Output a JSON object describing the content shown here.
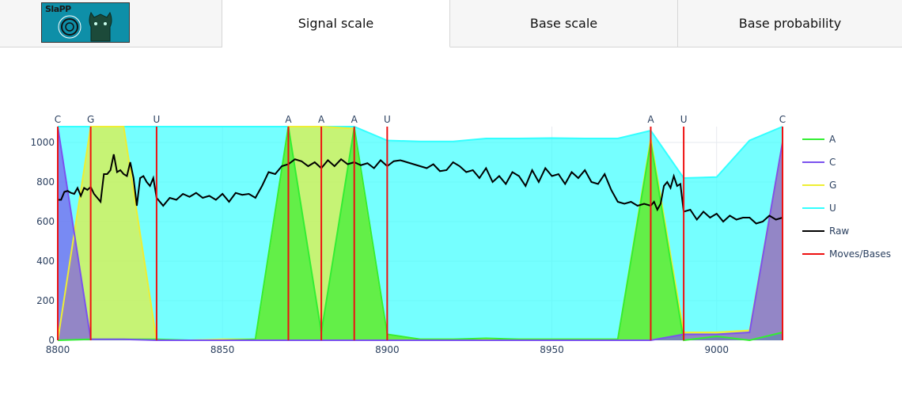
{
  "logo": {
    "text": "SlaPP",
    "icon": "slappy-logo-icon"
  },
  "tabs": [
    {
      "label": "Signal scale",
      "active": true
    },
    {
      "label": "Base scale",
      "active": false
    },
    {
      "label": "Base probability",
      "active": false
    }
  ],
  "chart_data": {
    "type": "area",
    "xlim": [
      8800,
      9020
    ],
    "ylim": [
      0,
      1080
    ],
    "xticks": [
      8800,
      8850,
      8900,
      8950,
      9000
    ],
    "yticks": [
      0,
      200,
      400,
      600,
      800,
      1000
    ],
    "grid": true,
    "legend_position": "right",
    "moves": [
      {
        "x": 8800,
        "base": "C"
      },
      {
        "x": 8810,
        "base": "G"
      },
      {
        "x": 8830,
        "base": "U"
      },
      {
        "x": 8870,
        "base": "A"
      },
      {
        "x": 8880,
        "base": "A"
      },
      {
        "x": 8890,
        "base": "A"
      },
      {
        "x": 8900,
        "base": "U"
      },
      {
        "x": 8980,
        "base": "A"
      },
      {
        "x": 8990,
        "base": "U"
      },
      {
        "x": 9020,
        "base": "C"
      }
    ],
    "series": [
      {
        "name": "A",
        "color": "#33ee33",
        "x": [
          8800,
          8810,
          8820,
          8830,
          8840,
          8850,
          8860,
          8870,
          8880,
          8890,
          8900,
          8910,
          8920,
          8930,
          8940,
          8950,
          8960,
          8970,
          8980,
          8990,
          9000,
          9010,
          9020
        ],
        "values": [
          0,
          5,
          5,
          5,
          0,
          0,
          5,
          1080,
          40,
          1075,
          30,
          5,
          5,
          10,
          5,
          5,
          5,
          5,
          1000,
          0,
          20,
          0,
          40
        ]
      },
      {
        "name": "C",
        "color": "#7b52ee",
        "x": [
          8800,
          8810,
          8820,
          8830,
          8840,
          8850,
          8860,
          8870,
          8880,
          8890,
          8900,
          8910,
          8920,
          8930,
          8940,
          8950,
          8960,
          8970,
          8980,
          8990,
          9000,
          9010,
          9020
        ],
        "values": [
          1080,
          5,
          5,
          0,
          0,
          0,
          0,
          0,
          0,
          0,
          0,
          0,
          0,
          0,
          0,
          0,
          0,
          0,
          0,
          30,
          30,
          40,
          1000
        ]
      },
      {
        "name": "G",
        "color": "#eeee33",
        "x": [
          8800,
          8810,
          8820,
          8830,
          8840,
          8850,
          8860,
          8870,
          8880,
          8890,
          8900,
          8910,
          8920,
          8930,
          8940,
          8950,
          8960,
          8970,
          8980,
          8990,
          9000,
          9010,
          9020
        ],
        "values": [
          0,
          1080,
          1080,
          0,
          0,
          5,
          5,
          1080,
          1080,
          1070,
          30,
          5,
          5,
          5,
          5,
          5,
          5,
          5,
          1020,
          40,
          40,
          50,
          1000
        ]
      },
      {
        "name": "U",
        "color": "#33ffff",
        "x": [
          8800,
          8810,
          8820,
          8830,
          8840,
          8850,
          8860,
          8870,
          8880,
          8890,
          8900,
          8910,
          8920,
          8930,
          8940,
          8950,
          8960,
          8970,
          8980,
          8990,
          9000,
          9010,
          9020
        ],
        "values": [
          1080,
          1080,
          1080,
          1080,
          1080,
          1080,
          1080,
          1080,
          1080,
          1080,
          1010,
          1005,
          1005,
          1020,
          1020,
          1022,
          1020,
          1020,
          1060,
          820,
          825,
          1010,
          1080
        ]
      },
      {
        "name": "Raw",
        "color": "#000000",
        "x": [
          8800,
          8801,
          8802,
          8803,
          8804,
          8805,
          8806,
          8807,
          8808,
          8809,
          8810,
          8811,
          8812,
          8813,
          8814,
          8815,
          8816,
          8817,
          8818,
          8819,
          8820,
          8821,
          8822,
          8823,
          8824,
          8825,
          8826,
          8827,
          8828,
          8829,
          8830,
          8832,
          8834,
          8836,
          8838,
          8840,
          8842,
          8844,
          8846,
          8848,
          8850,
          8852,
          8854,
          8856,
          8858,
          8860,
          8862,
          8864,
          8866,
          8868,
          8870,
          8872,
          8874,
          8876,
          8878,
          8880,
          8882,
          8884,
          8886,
          8888,
          8890,
          8892,
          8894,
          8896,
          8898,
          8900,
          8902,
          8904,
          8906,
          8908,
          8910,
          8912,
          8914,
          8916,
          8918,
          8920,
          8922,
          8924,
          8926,
          8928,
          8930,
          8932,
          8934,
          8936,
          8938,
          8940,
          8942,
          8944,
          8946,
          8948,
          8950,
          8952,
          8954,
          8956,
          8958,
          8960,
          8962,
          8964,
          8966,
          8968,
          8970,
          8972,
          8974,
          8976,
          8978,
          8980,
          8981,
          8982,
          8983,
          8984,
          8985,
          8986,
          8987,
          8988,
          8989,
          8990,
          8992,
          8994,
          8996,
          8998,
          9000,
          9002,
          9004,
          9006,
          9008,
          9010,
          9012,
          9014,
          9016,
          9018,
          9020
        ],
        "values": [
          710,
          710,
          750,
          755,
          745,
          740,
          770,
          730,
          770,
          760,
          775,
          740,
          720,
          700,
          840,
          840,
          860,
          940,
          850,
          860,
          840,
          830,
          900,
          820,
          680,
          820,
          830,
          800,
          780,
          820,
          720,
          680,
          720,
          710,
          740,
          725,
          745,
          720,
          730,
          710,
          740,
          700,
          745,
          735,
          740,
          720,
          780,
          850,
          840,
          880,
          890,
          915,
          905,
          880,
          900,
          870,
          910,
          880,
          915,
          890,
          900,
          885,
          895,
          870,
          910,
          880,
          905,
          910,
          900,
          890,
          880,
          870,
          890,
          855,
          860,
          900,
          880,
          850,
          860,
          820,
          870,
          800,
          830,
          790,
          850,
          830,
          780,
          860,
          800,
          870,
          830,
          840,
          790,
          850,
          820,
          860,
          800,
          790,
          840,
          760,
          700,
          690,
          700,
          680,
          690,
          680,
          700,
          660,
          690,
          780,
          800,
          770,
          830,
          780,
          790,
          650,
          660,
          610,
          650,
          620,
          640,
          600,
          630,
          610,
          620,
          620,
          590,
          600,
          630,
          610,
          620
        ]
      }
    ],
    "legend": [
      "A",
      "C",
      "G",
      "U",
      "Raw",
      "Moves/Bases"
    ],
    "legend_colors": [
      "#33ee33",
      "#7b52ee",
      "#eeee33",
      "#33ffff",
      "#000000",
      "#ee1111"
    ]
  }
}
